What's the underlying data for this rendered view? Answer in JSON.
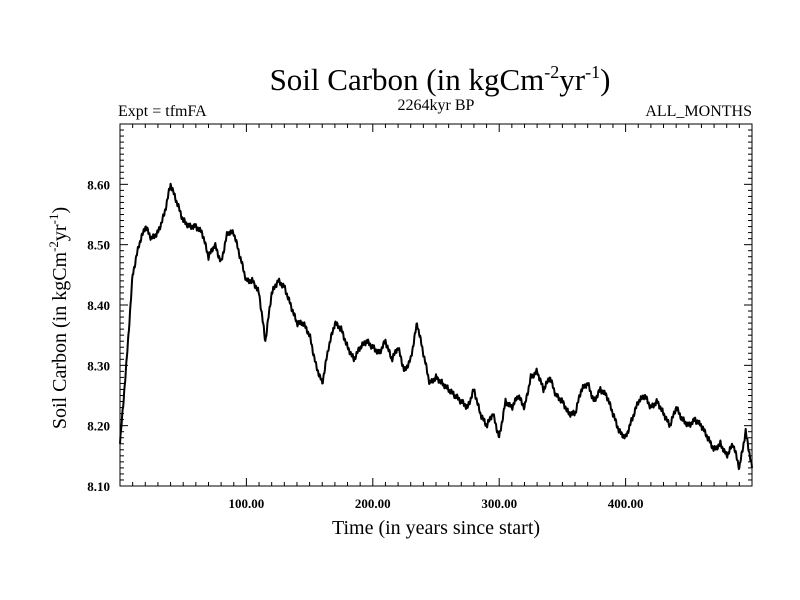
{
  "chart_data": {
    "type": "line",
    "title": {
      "main": "Soil Carbon (in kgCm",
      "exp1": "-2",
      "mid": "yr",
      "exp2": "-1",
      "end": ")"
    },
    "subtitle_left": "Expt = tfmFA",
    "subtitle_center": "2264kyr BP",
    "subtitle_right": "ALL_MONTHS",
    "xlabel": "Time (in years since start)",
    "ylabel": {
      "main": "Soil Carbon (in kgCm",
      "exp1": "-2",
      "mid": "yr",
      "exp2": "-1",
      "end": ")"
    },
    "xlim": [
      0,
      500
    ],
    "ylim": [
      8.1,
      8.7
    ],
    "x_ticks": [
      100,
      200,
      300,
      400
    ],
    "x_tick_labels": [
      "100.00",
      "200.00",
      "300.00",
      "400.00"
    ],
    "y_ticks": [
      8.1,
      8.2,
      8.3,
      8.4,
      8.5,
      8.6
    ],
    "y_tick_labels": [
      "8.10",
      "8.20",
      "8.30",
      "8.40",
      "8.50",
      "8.60"
    ],
    "grid": false,
    "series": [
      {
        "name": "Soil Carbon",
        "color": "#000000",
        "x": [
          0,
          5,
          10,
          15,
          20,
          25,
          30,
          35,
          40,
          45,
          50,
          55,
          60,
          65,
          70,
          75,
          80,
          85,
          90,
          95,
          100,
          105,
          110,
          115,
          120,
          125,
          130,
          135,
          140,
          145,
          150,
          155,
          160,
          165,
          170,
          175,
          180,
          185,
          190,
          195,
          200,
          205,
          210,
          215,
          220,
          225,
          230,
          235,
          240,
          245,
          250,
          255,
          260,
          265,
          270,
          275,
          280,
          285,
          290,
          295,
          300,
          305,
          310,
          315,
          320,
          325,
          330,
          335,
          340,
          345,
          350,
          355,
          360,
          365,
          370,
          375,
          380,
          385,
          390,
          395,
          400,
          405,
          410,
          415,
          420,
          425,
          430,
          435,
          440,
          445,
          450,
          455,
          460,
          465,
          470,
          475,
          480,
          485,
          490,
          495,
          500
        ],
        "values": [
          8.17,
          8.3,
          8.45,
          8.5,
          8.53,
          8.51,
          8.52,
          8.55,
          8.6,
          8.57,
          8.54,
          8.53,
          8.53,
          8.52,
          8.48,
          8.5,
          8.47,
          8.52,
          8.52,
          8.48,
          8.44,
          8.44,
          8.42,
          8.34,
          8.42,
          8.44,
          8.43,
          8.4,
          8.37,
          8.37,
          8.35,
          8.3,
          8.27,
          8.33,
          8.37,
          8.36,
          8.33,
          8.31,
          8.33,
          8.34,
          8.33,
          8.32,
          8.34,
          8.31,
          8.33,
          8.29,
          8.31,
          8.37,
          8.32,
          8.27,
          8.28,
          8.27,
          8.26,
          8.25,
          8.24,
          8.23,
          8.26,
          8.22,
          8.2,
          8.22,
          8.18,
          8.24,
          8.23,
          8.25,
          8.23,
          8.28,
          8.29,
          8.26,
          8.28,
          8.25,
          8.24,
          8.22,
          8.22,
          8.26,
          8.27,
          8.24,
          8.26,
          8.25,
          8.22,
          8.19,
          8.18,
          8.21,
          8.24,
          8.25,
          8.23,
          8.24,
          8.22,
          8.2,
          8.23,
          8.21,
          8.2,
          8.21,
          8.2,
          8.18,
          8.16,
          8.17,
          8.15,
          8.17,
          8.13,
          8.19,
          8.13
        ]
      }
    ]
  }
}
